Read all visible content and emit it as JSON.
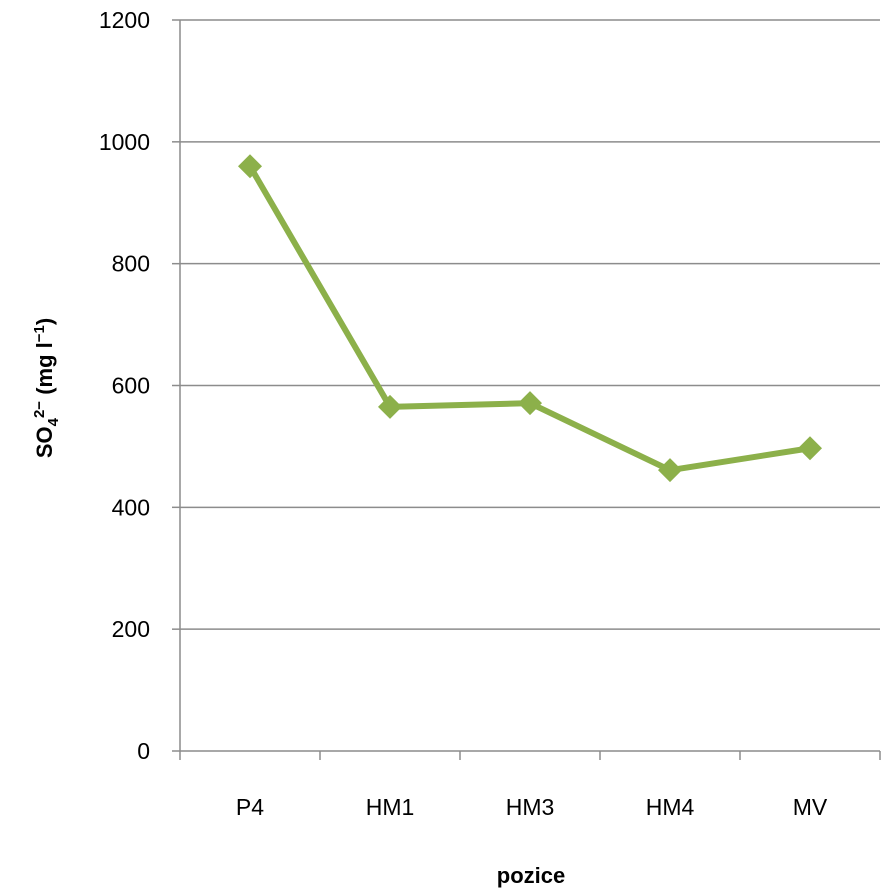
{
  "chart_data": {
    "type": "line",
    "title": "",
    "categories": [
      "P4",
      "HM1",
      "HM3",
      "HM4",
      "MV"
    ],
    "series": [
      {
        "values": [
          960,
          565,
          571,
          461,
          497
        ],
        "color": "#8cb04a",
        "marker": "diamond"
      }
    ],
    "xlabel": "pozice",
    "ylabel": {
      "base": "SO",
      "subscript": "4",
      "superscript": "2−",
      "unit_open": " (mg l",
      "unit_superscript": "−1",
      "unit_close": ")"
    },
    "ylim": [
      0,
      1200
    ],
    "yticks": [
      "0",
      "200",
      "400",
      "600",
      "800",
      "1000",
      "1200"
    ],
    "grid": true,
    "legend": "none"
  }
}
